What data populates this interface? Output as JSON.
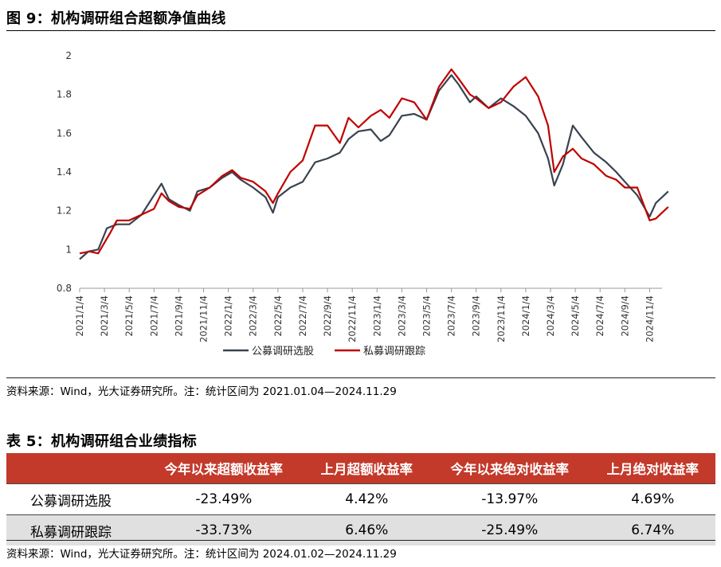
{
  "figure_title": "图 9：机构调研组合超额净值曲线",
  "figure_source": "资料来源：Wind，光大证券研究所。注：统计区间为 2021.01.04—2024.11.29",
  "table_title": "表 5：机构调研组合业绩指标",
  "table_source": "资料来源：Wind，光大证券研究所。注：统计区间为 2024.01.02—2024.11.29",
  "table": {
    "headers": [
      "",
      "今年以来超额收益率",
      "上月超额收益率",
      "今年以来绝对收益率",
      "上月绝对收益率"
    ],
    "rows": [
      {
        "name": "公募调研选股",
        "values": [
          "-23.49%",
          "4.42%",
          "-13.97%",
          "4.69%"
        ]
      },
      {
        "name": "私募调研跟踪",
        "values": [
          "-33.73%",
          "6.46%",
          "-25.49%",
          "6.74%"
        ]
      }
    ]
  },
  "chart_data": {
    "type": "line",
    "title": "",
    "ylim": [
      0.8,
      2.0
    ],
    "yticks": [
      "0.8",
      "1",
      "1.2",
      "1.4",
      "1.6",
      "1.8",
      "2"
    ],
    "xticks": [
      "2021/1/4",
      "2021/3/4",
      "2021/5/4",
      "2021/7/4",
      "2021/9/4",
      "2021/11/4",
      "2022/1/4",
      "2022/3/4",
      "2022/5/4",
      "2022/7/4",
      "2022/9/4",
      "2022/11/4",
      "2023/1/4",
      "2023/3/4",
      "2023/5/4",
      "2023/7/4",
      "2023/9/4",
      "2023/11/4",
      "2024/1/4",
      "2024/3/4",
      "2024/5/4",
      "2024/7/4",
      "2024/9/4",
      "2024/11/4"
    ],
    "x_range_months": [
      0,
      47
    ],
    "series": [
      {
        "name": "公募调研选股",
        "color": "#3a4250",
        "points": [
          [
            0,
            0.95
          ],
          [
            0.7,
            0.99
          ],
          [
            1.5,
            1.0
          ],
          [
            2.2,
            1.11
          ],
          [
            3,
            1.13
          ],
          [
            4,
            1.13
          ],
          [
            5,
            1.18
          ],
          [
            6,
            1.28
          ],
          [
            6.6,
            1.34
          ],
          [
            7.2,
            1.26
          ],
          [
            8,
            1.23
          ],
          [
            8.9,
            1.2
          ],
          [
            9.5,
            1.3
          ],
          [
            10.5,
            1.32
          ],
          [
            11.5,
            1.37
          ],
          [
            12.3,
            1.4
          ],
          [
            13,
            1.36
          ],
          [
            14,
            1.32
          ],
          [
            15,
            1.27
          ],
          [
            15.6,
            1.19
          ],
          [
            16,
            1.27
          ],
          [
            17,
            1.32
          ],
          [
            18,
            1.35
          ],
          [
            19,
            1.45
          ],
          [
            20,
            1.47
          ],
          [
            21,
            1.5
          ],
          [
            21.7,
            1.57
          ],
          [
            22.5,
            1.61
          ],
          [
            23.5,
            1.62
          ],
          [
            24.3,
            1.56
          ],
          [
            25,
            1.59
          ],
          [
            26,
            1.69
          ],
          [
            27,
            1.7
          ],
          [
            28,
            1.67
          ],
          [
            29,
            1.82
          ],
          [
            30,
            1.9
          ],
          [
            30.6,
            1.85
          ],
          [
            31.5,
            1.76
          ],
          [
            32,
            1.79
          ],
          [
            33,
            1.73
          ],
          [
            34,
            1.78
          ],
          [
            35,
            1.74
          ],
          [
            36,
            1.69
          ],
          [
            37,
            1.6
          ],
          [
            37.8,
            1.47
          ],
          [
            38.3,
            1.33
          ],
          [
            39,
            1.44
          ],
          [
            39.8,
            1.64
          ],
          [
            40.5,
            1.58
          ],
          [
            41.5,
            1.5
          ],
          [
            42.5,
            1.45
          ],
          [
            43.3,
            1.4
          ],
          [
            44,
            1.35
          ],
          [
            45,
            1.28
          ],
          [
            46,
            1.17
          ],
          [
            46.5,
            1.24
          ],
          [
            47.5,
            1.3
          ]
        ]
      },
      {
        "name": "私募调研跟踪",
        "color": "#c00000",
        "points": [
          [
            0,
            0.98
          ],
          [
            0.8,
            0.99
          ],
          [
            1.5,
            0.98
          ],
          [
            2.5,
            1.09
          ],
          [
            3,
            1.15
          ],
          [
            4,
            1.15
          ],
          [
            5,
            1.18
          ],
          [
            6,
            1.21
          ],
          [
            6.6,
            1.29
          ],
          [
            7.2,
            1.25
          ],
          [
            8,
            1.22
          ],
          [
            8.9,
            1.21
          ],
          [
            9.5,
            1.28
          ],
          [
            10.5,
            1.32
          ],
          [
            11.5,
            1.38
          ],
          [
            12.3,
            1.41
          ],
          [
            13,
            1.37
          ],
          [
            14,
            1.35
          ],
          [
            15,
            1.3
          ],
          [
            15.6,
            1.24
          ],
          [
            16,
            1.29
          ],
          [
            17,
            1.4
          ],
          [
            18,
            1.46
          ],
          [
            19,
            1.64
          ],
          [
            20,
            1.64
          ],
          [
            21,
            1.55
          ],
          [
            21.7,
            1.68
          ],
          [
            22.5,
            1.63
          ],
          [
            23.5,
            1.69
          ],
          [
            24.3,
            1.72
          ],
          [
            25,
            1.68
          ],
          [
            26,
            1.78
          ],
          [
            27,
            1.76
          ],
          [
            28,
            1.67
          ],
          [
            29,
            1.84
          ],
          [
            30,
            1.93
          ],
          [
            30.6,
            1.88
          ],
          [
            31.5,
            1.8
          ],
          [
            32,
            1.78
          ],
          [
            33,
            1.73
          ],
          [
            34,
            1.76
          ],
          [
            35,
            1.84
          ],
          [
            36,
            1.89
          ],
          [
            37,
            1.79
          ],
          [
            37.8,
            1.64
          ],
          [
            38.3,
            1.4
          ],
          [
            39,
            1.48
          ],
          [
            39.8,
            1.52
          ],
          [
            40.5,
            1.47
          ],
          [
            41.5,
            1.44
          ],
          [
            42.5,
            1.38
          ],
          [
            43.3,
            1.36
          ],
          [
            44,
            1.32
          ],
          [
            45,
            1.32
          ],
          [
            46,
            1.15
          ],
          [
            46.5,
            1.16
          ],
          [
            47.5,
            1.22
          ]
        ]
      }
    ],
    "legend_position": "bottom-center"
  }
}
